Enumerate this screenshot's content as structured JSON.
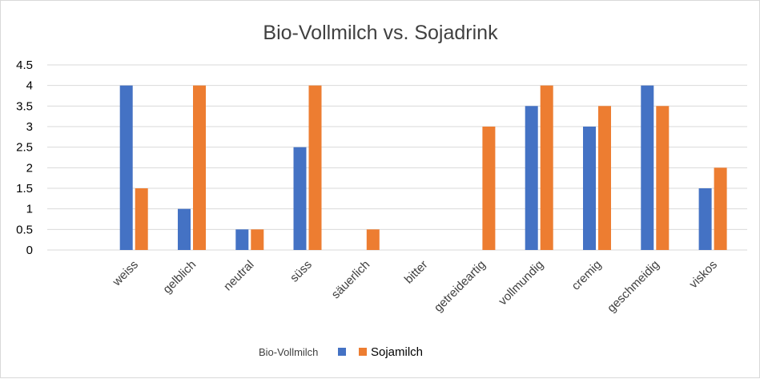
{
  "chart_data": {
    "type": "bar",
    "title": "Bio-Vollmilch vs. Sojadrink",
    "xlabel": "",
    "ylabel": "",
    "ylim": [
      0,
      4.5
    ],
    "yticks": [
      "0",
      "0.5",
      "1",
      "1.5",
      "2",
      "2.5",
      "3",
      "3.5",
      "4",
      "4.5"
    ],
    "grid": true,
    "legend_position": "bottom",
    "categories": [
      "weiss",
      "gelblich",
      "neutral",
      "süss",
      "säuerlich",
      "bitter",
      "getreideartig",
      "vollmundig",
      "cremig",
      "geschmeidig",
      "viskos"
    ],
    "series": [
      {
        "name": "Bio-Vollmilch",
        "color": "#4472c4",
        "values": [
          4,
          1,
          0.5,
          2.5,
          0,
          0,
          0,
          3.5,
          3,
          4,
          1.5
        ]
      },
      {
        "name": "Sojamilch",
        "color": "#ed7d31",
        "values": [
          1.5,
          4,
          0.5,
          4,
          0.5,
          0,
          3,
          4,
          3.5,
          3.5,
          2
        ]
      }
    ]
  }
}
